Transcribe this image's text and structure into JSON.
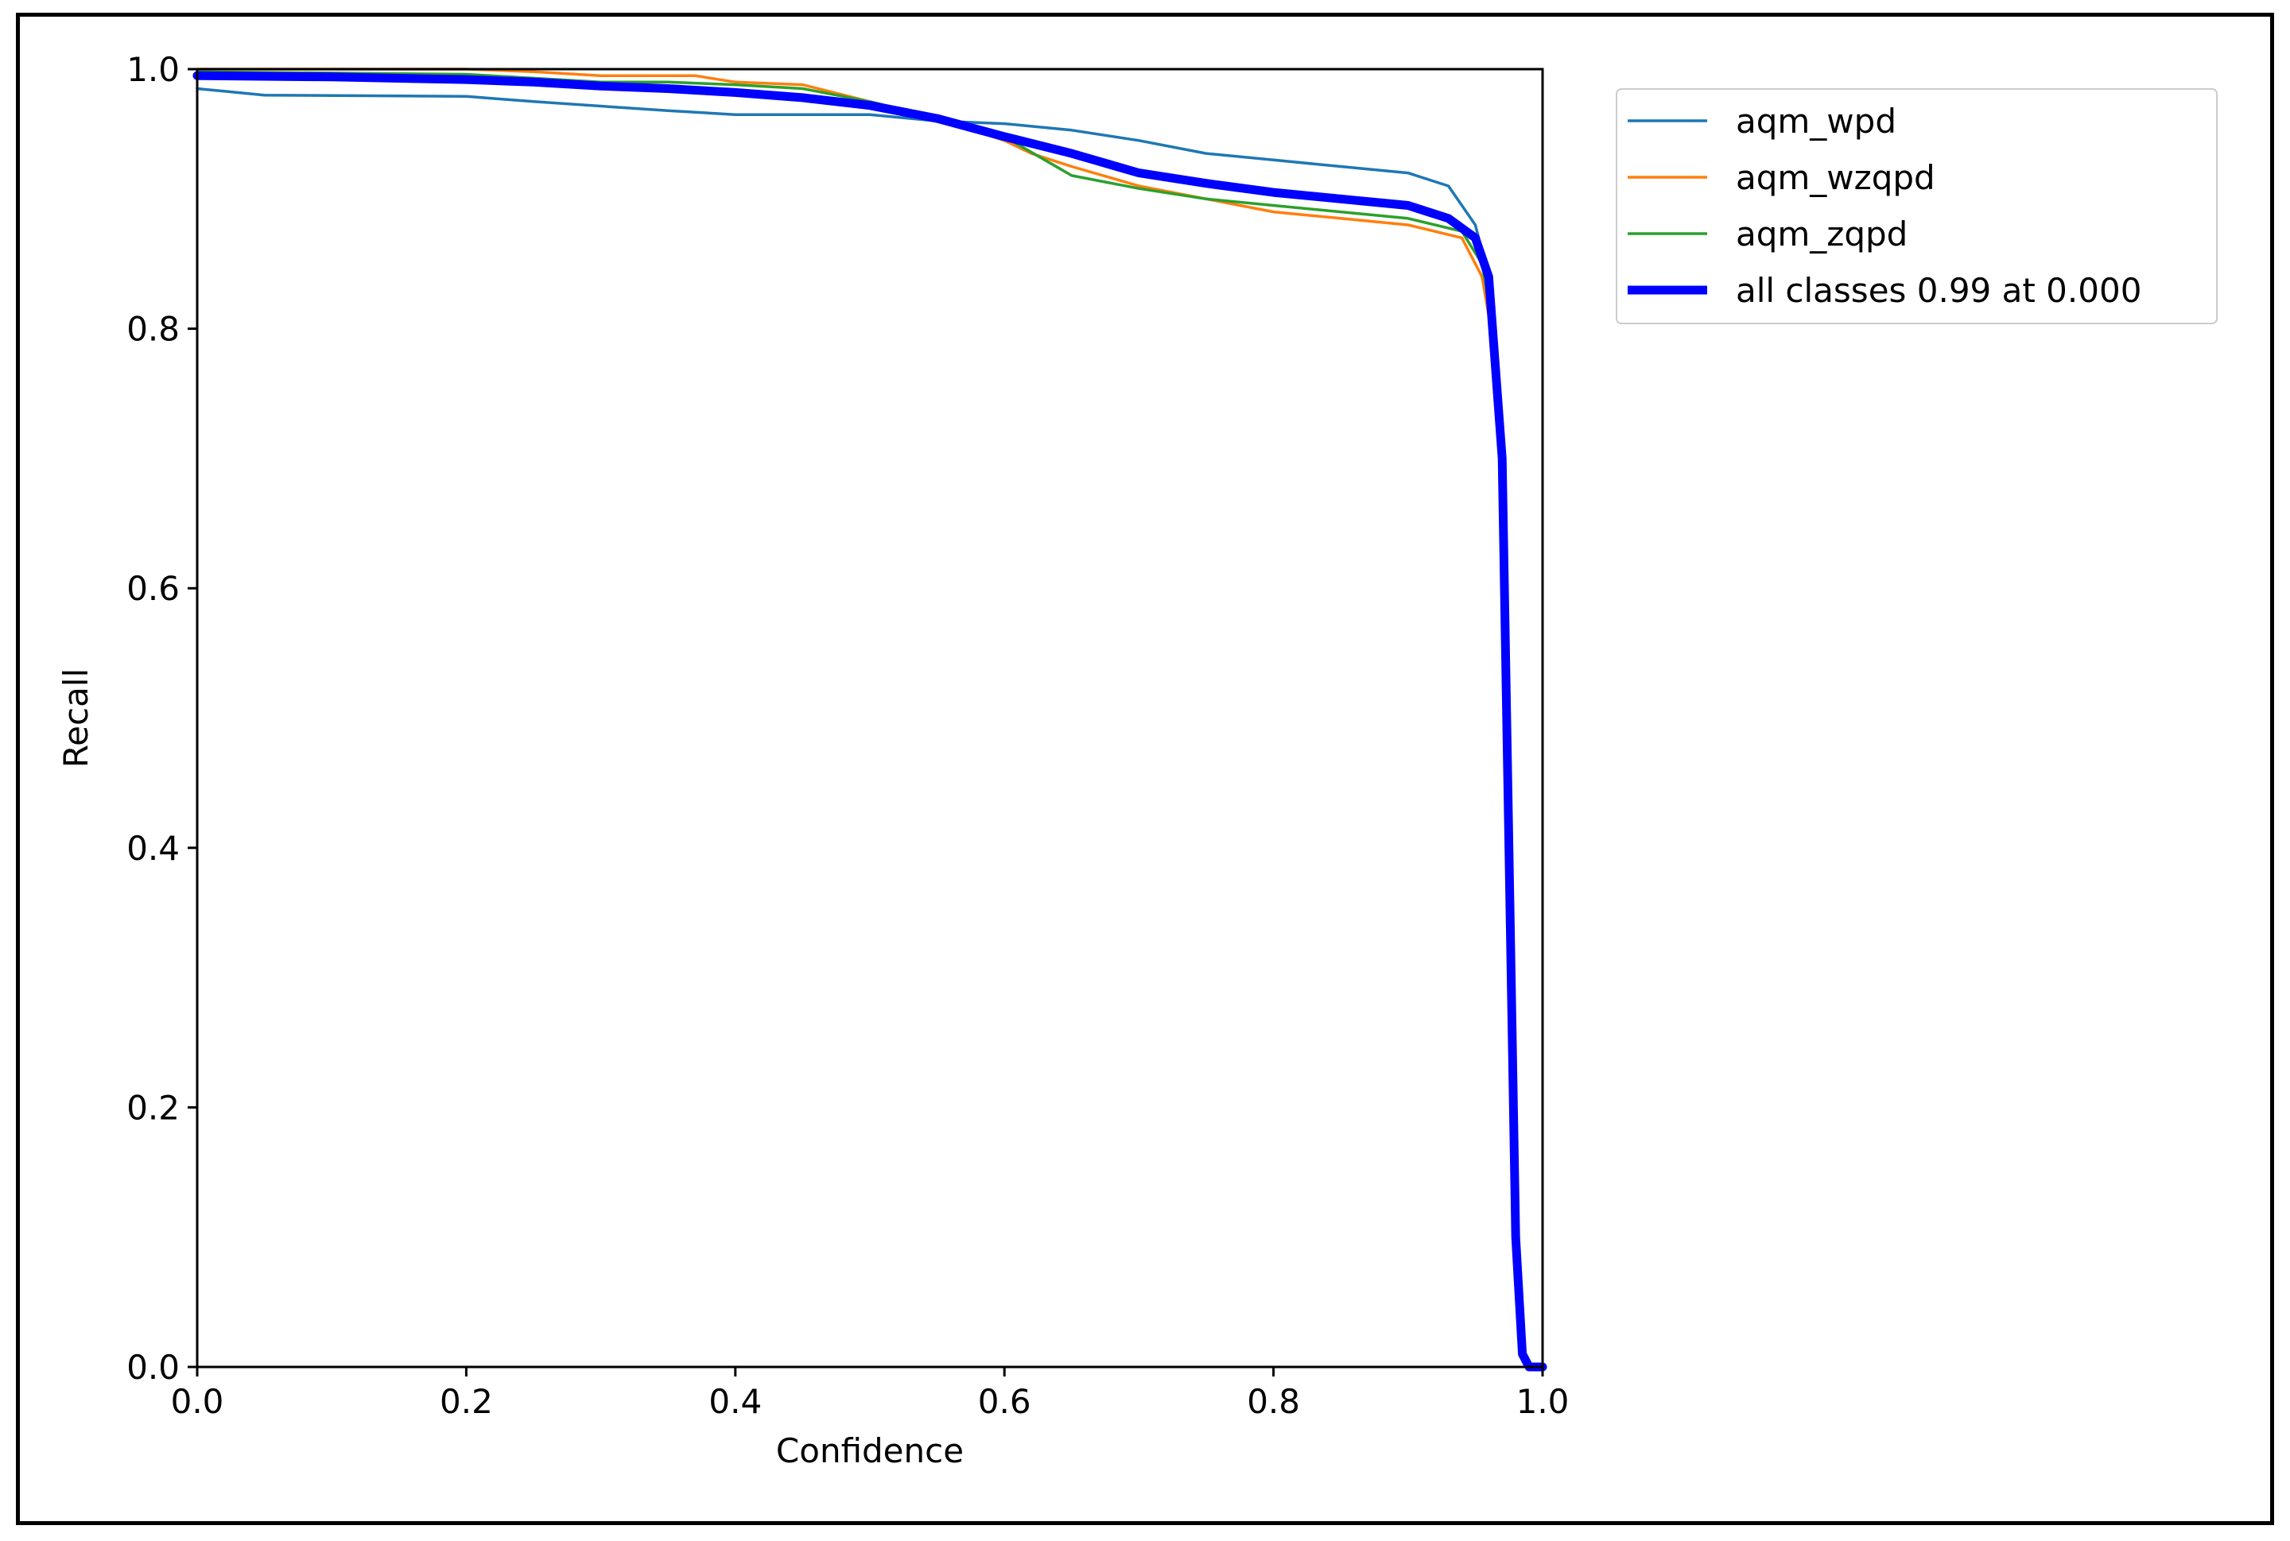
{
  "chart_data": {
    "type": "line",
    "title": "",
    "xlabel": "Confidence",
    "ylabel": "Recall",
    "xlim": [
      0.0,
      1.0
    ],
    "ylim": [
      0.0,
      1.0
    ],
    "xticks": [
      "0.0",
      "0.2",
      "0.4",
      "0.6",
      "0.8",
      "1.0"
    ],
    "yticks": [
      "0.0",
      "0.2",
      "0.4",
      "0.6",
      "0.8",
      "1.0"
    ],
    "grid": false,
    "legend_position": "outside-top-right",
    "series": [
      {
        "name": "aqm_wpd",
        "color": "#1f77b4",
        "emphasis": false,
        "x": [
          0.0,
          0.02,
          0.05,
          0.2,
          0.25,
          0.35,
          0.4,
          0.5,
          0.55,
          0.6,
          0.65,
          0.7,
          0.75,
          0.8,
          0.85,
          0.9,
          0.93,
          0.95,
          0.96,
          0.97,
          0.975,
          0.98,
          0.985,
          0.99,
          1.0
        ],
        "y": [
          0.985,
          0.983,
          0.98,
          0.979,
          0.975,
          0.968,
          0.965,
          0.965,
          0.96,
          0.958,
          0.953,
          0.945,
          0.935,
          0.93,
          0.925,
          0.92,
          0.91,
          0.88,
          0.84,
          0.7,
          0.4,
          0.1,
          0.01,
          0.0,
          0.0
        ]
      },
      {
        "name": "aqm_wzqpd",
        "color": "#ff7f0e",
        "emphasis": false,
        "x": [
          0.0,
          0.2,
          0.25,
          0.3,
          0.37,
          0.4,
          0.45,
          0.5,
          0.55,
          0.6,
          0.62,
          0.65,
          0.7,
          0.75,
          0.8,
          0.85,
          0.9,
          0.94,
          0.955,
          0.965,
          0.972,
          0.977,
          0.982,
          0.986,
          0.99,
          1.0
        ],
        "y": [
          1.0,
          1.0,
          0.998,
          0.995,
          0.995,
          0.99,
          0.988,
          0.975,
          0.962,
          0.945,
          0.935,
          0.925,
          0.91,
          0.9,
          0.89,
          0.885,
          0.88,
          0.87,
          0.84,
          0.78,
          0.65,
          0.4,
          0.1,
          0.01,
          0.0,
          0.0
        ]
      },
      {
        "name": "aqm_zqpd",
        "color": "#2ca02c",
        "emphasis": false,
        "x": [
          0.0,
          0.2,
          0.25,
          0.3,
          0.35,
          0.4,
          0.45,
          0.5,
          0.55,
          0.6,
          0.63,
          0.65,
          0.7,
          0.75,
          0.8,
          0.85,
          0.9,
          0.94,
          0.955,
          0.965,
          0.972,
          0.977,
          0.982,
          0.986,
          0.99,
          1.0
        ],
        "y": [
          0.998,
          0.996,
          0.993,
          0.99,
          0.99,
          0.988,
          0.985,
          0.975,
          0.962,
          0.948,
          0.93,
          0.918,
          0.908,
          0.9,
          0.895,
          0.89,
          0.885,
          0.875,
          0.85,
          0.79,
          0.65,
          0.4,
          0.1,
          0.01,
          0.0,
          0.0
        ]
      },
      {
        "name": "all classes 0.99 at 0.000",
        "color": "#0000ff",
        "emphasis": true,
        "x": [
          0.0,
          0.1,
          0.2,
          0.25,
          0.3,
          0.35,
          0.4,
          0.45,
          0.5,
          0.55,
          0.6,
          0.65,
          0.7,
          0.75,
          0.8,
          0.85,
          0.9,
          0.93,
          0.95,
          0.96,
          0.97,
          0.975,
          0.98,
          0.985,
          0.99,
          1.0
        ],
        "y": [
          0.995,
          0.994,
          0.992,
          0.99,
          0.987,
          0.985,
          0.982,
          0.978,
          0.972,
          0.962,
          0.948,
          0.935,
          0.92,
          0.912,
          0.905,
          0.9,
          0.895,
          0.885,
          0.87,
          0.84,
          0.7,
          0.4,
          0.1,
          0.01,
          0.0,
          0.0
        ]
      }
    ]
  }
}
